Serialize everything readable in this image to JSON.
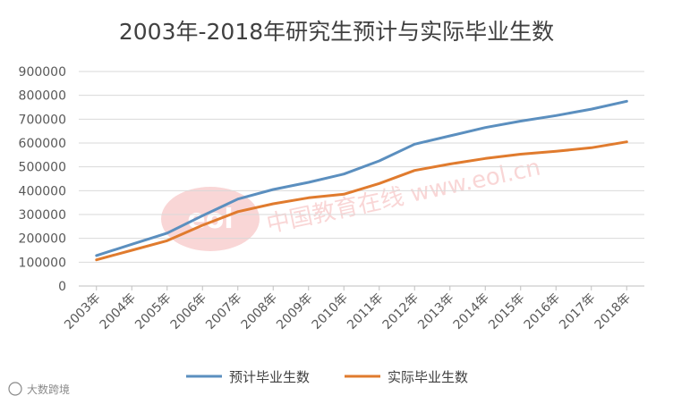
{
  "title": "2003年-2018年研究生预计与实际毕业生数",
  "chart_data": {
    "type": "line",
    "title": "2003年-2018年研究生预计与实际毕业生数",
    "categories": [
      "2003年",
      "2004年",
      "2005年",
      "2006年",
      "2007年",
      "2008年",
      "2009年",
      "2010年",
      "2011年",
      "2012年",
      "2013年",
      "2014年",
      "2015年",
      "2016年",
      "2017年",
      "2018年"
    ],
    "series": [
      {
        "name": "预计毕业生数",
        "color": "#5b8fbf",
        "values": [
          128000,
          175000,
          222000,
          295000,
          365000,
          405000,
          435000,
          470000,
          525000,
          595000,
          630000,
          665000,
          692000,
          715000,
          742000,
          775000
        ]
      },
      {
        "name": "实际毕业生数",
        "color": "#e07b2e",
        "values": [
          110000,
          150000,
          190000,
          255000,
          312000,
          345000,
          370000,
          385000,
          430000,
          485000,
          512000,
          535000,
          553000,
          565000,
          580000,
          605000
        ]
      }
    ],
    "ylim": [
      0,
      900000
    ],
    "yticks": [
      0,
      100000,
      200000,
      300000,
      400000,
      500000,
      600000,
      700000,
      800000,
      900000
    ],
    "grid": true,
    "legend": "bottom"
  },
  "watermarks": {
    "center": "中国教育在线 www.eol.cn",
    "bottom_left": "大数跨境"
  }
}
